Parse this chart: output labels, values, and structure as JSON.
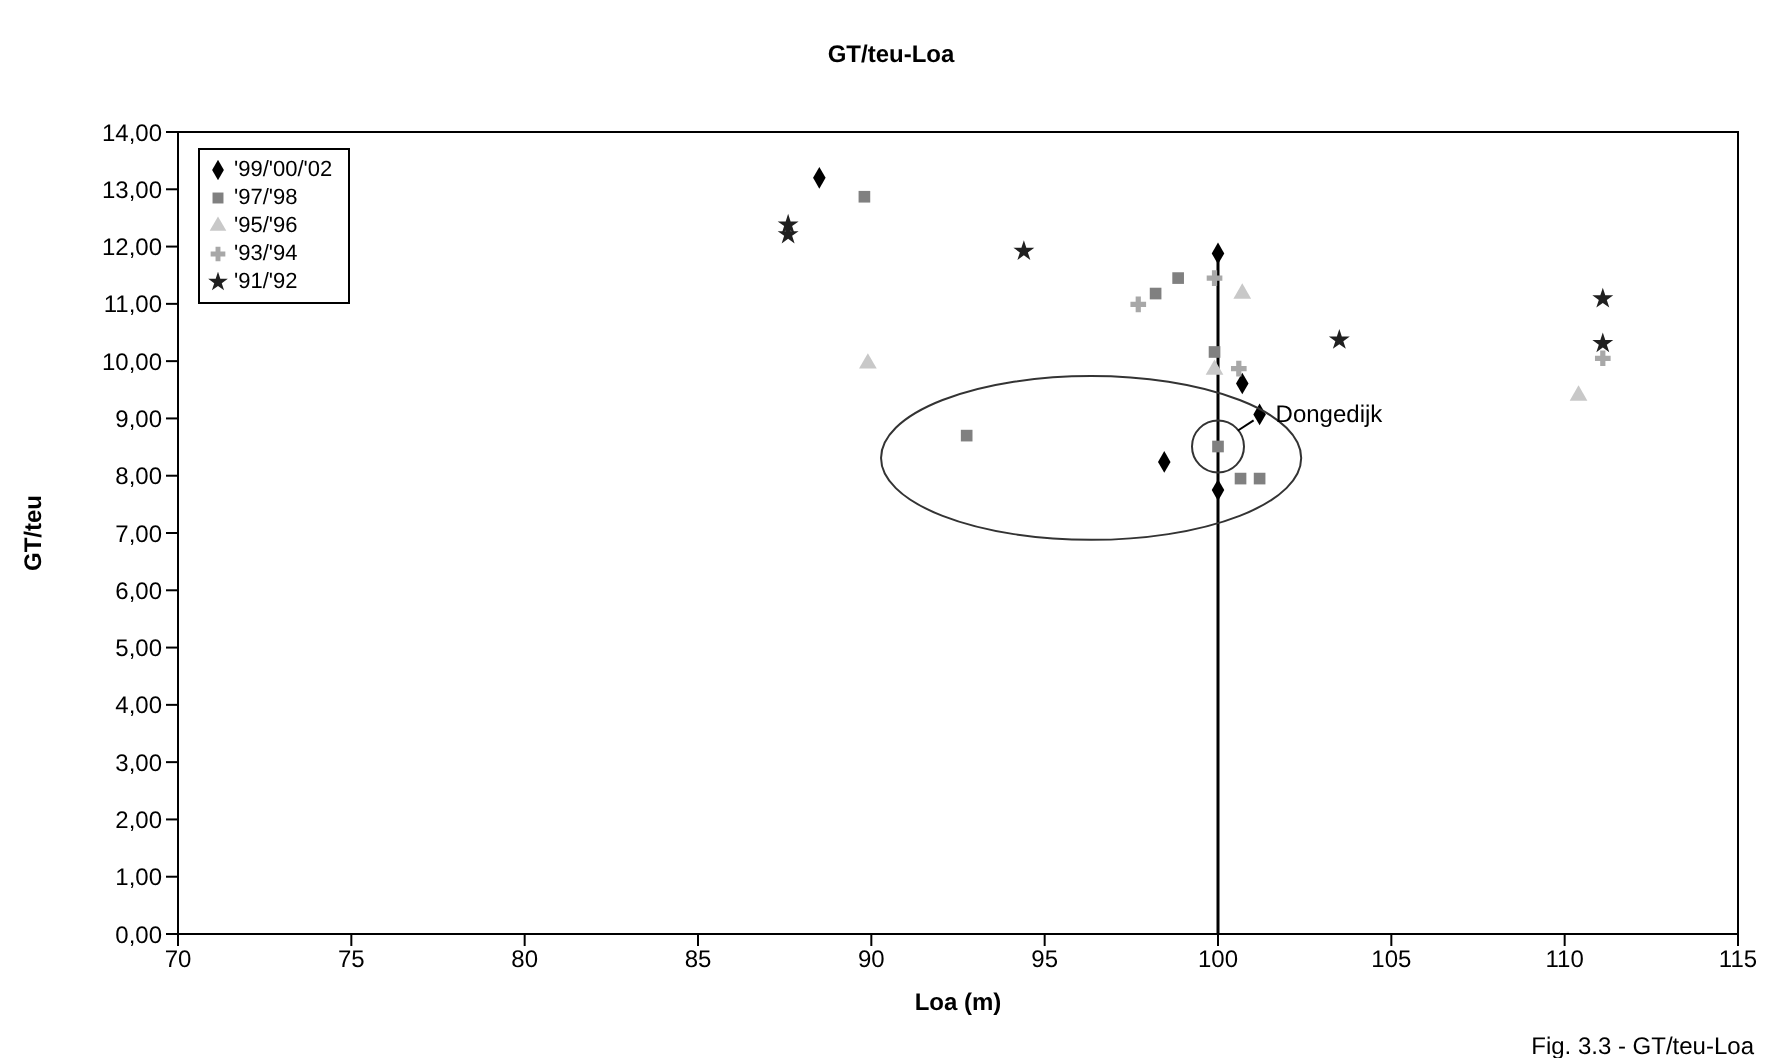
{
  "chart_data": {
    "type": "scatter",
    "title": "GT/teu-Loa",
    "xlabel": "Loa (m)",
    "ylabel": "GT/teu",
    "annotations": [
      {
        "text": "Dongedijk",
        "x": 101.2,
        "y": 9.07
      },
      "Fig. 3.3 - GT/teu-Loa"
    ],
    "xlim": [
      70,
      115
    ],
    "xticks": [
      70,
      75,
      80,
      85,
      90,
      95,
      100,
      105,
      110,
      115
    ],
    "ylim": [
      0,
      14
    ],
    "yticks": [
      {
        "value": 0,
        "label": "0,00"
      },
      {
        "value": 1,
        "label": "1,00"
      },
      {
        "value": 2,
        "label": "2,00"
      },
      {
        "value": 3,
        "label": "3,00"
      },
      {
        "value": 4,
        "label": "4,00"
      },
      {
        "value": 5,
        "label": "5,00"
      },
      {
        "value": 6,
        "label": "6,00"
      },
      {
        "value": 7,
        "label": "7,00"
      },
      {
        "value": 8,
        "label": "8,00"
      },
      {
        "value": 9,
        "label": "9,00"
      },
      {
        "value": 10,
        "label": "10,00"
      },
      {
        "value": 11,
        "label": "11,00"
      },
      {
        "value": 12,
        "label": "12,00"
      },
      {
        "value": 13,
        "label": "13,00"
      },
      {
        "value": 14,
        "label": "14,00"
      }
    ],
    "grid": false,
    "legend": "top left",
    "series": [
      {
        "name": "'99/'00/'02",
        "color": "#000000",
        "marker": "diamond",
        "x": [
          88.5,
          100,
          100.7,
          101.2,
          98.45,
          100
        ],
        "values": [
          13.2,
          11.88,
          9.61,
          9.07,
          8.24,
          7.75
        ]
      },
      {
        "name": "'97/'98",
        "color": "#808080",
        "marker": "square",
        "x": [
          89.8,
          98.2,
          98.85,
          99.9,
          92.75,
          100,
          100.65,
          101.2
        ],
        "values": [
          12.87,
          11.18,
          11.45,
          10.16,
          8.7,
          8.51,
          7.95,
          7.95
        ]
      },
      {
        "name": "'95/'96",
        "color": "#c8c8c8",
        "marker": "triangle",
        "x": [
          99.9,
          100.7,
          110.4,
          89.9
        ],
        "values": [
          9.85,
          11.18,
          9.4,
          9.96
        ]
      },
      {
        "name": "'93/'94",
        "color": "#a8a8a8",
        "marker": "cross",
        "x": [
          97.7,
          99.9,
          100.6,
          111.1
        ],
        "values": [
          10.99,
          11.45,
          9.87,
          10.05
        ]
      },
      {
        "name": "'91/'92",
        "color": "#202020",
        "marker": "star",
        "x": [
          87.6,
          87.6,
          94.4,
          103.5,
          111.1,
          111.1
        ],
        "values": [
          12.38,
          12.21,
          11.92,
          10.37,
          11.09,
          10.31
        ]
      }
    ],
    "ref_lines": [
      {
        "axis": "x",
        "value": 100,
        "color": "#000000",
        "line_style": "solid"
      }
    ]
  }
}
